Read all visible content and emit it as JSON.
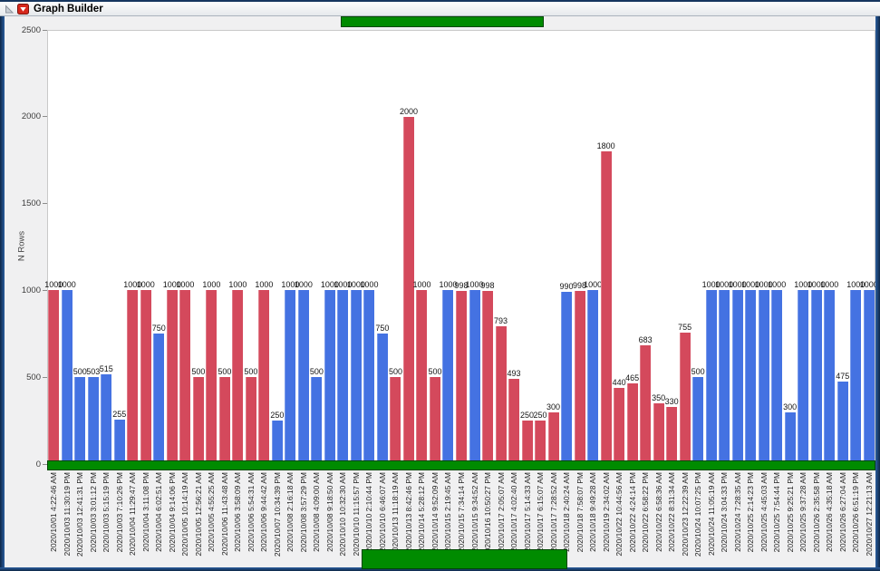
{
  "window": {
    "title": "Graph Builder"
  },
  "icons": {
    "disclosure": "disclosure-triangle-icon",
    "menu": "red-triangle-menu-icon"
  },
  "colors": {
    "red_bar": "#D4495C",
    "blue_bar": "#4472E2",
    "green_fill": "#008B00",
    "green_border": "#004600",
    "frame_blue": "#16365F"
  },
  "chart_data": {
    "type": "bar",
    "title": "",
    "xlabel": "",
    "ylabel": "N Rows",
    "ylim": [
      0,
      2500
    ],
    "yticks": [
      0,
      500,
      1000,
      1500,
      2000,
      2500
    ],
    "grid": false,
    "legend_position": "none",
    "bar_value_labels": true,
    "color_map": {
      "red": "#D4495C",
      "blue": "#4472E2"
    },
    "points": [
      {
        "t": "2020/10/01 4:22:46 AM",
        "v": 1000,
        "c": "red"
      },
      {
        "t": "2020/10/03 11:30:19 PM",
        "v": 1000,
        "c": "blue"
      },
      {
        "t": "2020/10/03 12:41:31 PM",
        "v": 500,
        "c": "blue"
      },
      {
        "t": "2020/10/03 3:01:12 PM",
        "v": 503,
        "c": "blue"
      },
      {
        "t": "2020/10/03 5:15:19 PM",
        "v": 515,
        "c": "blue"
      },
      {
        "t": "2020/10/03 7:10:26 PM",
        "v": 255,
        "c": "blue"
      },
      {
        "t": "2020/10/04 11:29:47 AM",
        "v": 1000,
        "c": "red"
      },
      {
        "t": "2020/10/04 3:11:08 PM",
        "v": 1000,
        "c": "red"
      },
      {
        "t": "2020/10/04 6:02:51 AM",
        "v": 750,
        "c": "blue"
      },
      {
        "t": "2020/10/04 9:14:06 PM",
        "v": 1000,
        "c": "red"
      },
      {
        "t": "2020/10/05 10:14:19 AM",
        "v": 1000,
        "c": "red"
      },
      {
        "t": "2020/10/05 12:56:21 AM",
        "v": 500,
        "c": "red"
      },
      {
        "t": "2020/10/05 4:55:25 AM",
        "v": 1000,
        "c": "red"
      },
      {
        "t": "2020/10/06 11:43:48 AM",
        "v": 500,
        "c": "red"
      },
      {
        "t": "2020/10/06 3:58:09 AM",
        "v": 1000,
        "c": "red"
      },
      {
        "t": "2020/10/06 5:54:31 AM",
        "v": 500,
        "c": "red"
      },
      {
        "t": "2020/10/06 9:44:42 AM",
        "v": 1000,
        "c": "red"
      },
      {
        "t": "2020/10/07 10:34:39 PM",
        "v": 250,
        "c": "blue"
      },
      {
        "t": "2020/10/08 2:16:18 AM",
        "v": 1000,
        "c": "blue"
      },
      {
        "t": "2020/10/08 3:57:29 PM",
        "v": 1000,
        "c": "blue"
      },
      {
        "t": "2020/10/08 4:09:00 AM",
        "v": 500,
        "c": "blue"
      },
      {
        "t": "2020/10/08 9:18:50 AM",
        "v": 1000,
        "c": "blue"
      },
      {
        "t": "2020/10/10 10:32:30 AM",
        "v": 1000,
        "c": "blue"
      },
      {
        "t": "2020/10/10 11:15:57 PM",
        "v": 1000,
        "c": "blue"
      },
      {
        "t": "2020/10/10 2:10:44 PM",
        "v": 1000,
        "c": "blue"
      },
      {
        "t": "2020/10/10 6:46:07 AM",
        "v": 750,
        "c": "blue"
      },
      {
        "t": "2020/10/13 11:18:19 AM",
        "v": 500,
        "c": "red"
      },
      {
        "t": "2020/10/13 8:42:46 PM",
        "v": 2000,
        "c": "red"
      },
      {
        "t": "2020/10/14 5:28:12 PM",
        "v": 1000,
        "c": "red"
      },
      {
        "t": "2020/10/14 9:52:09 AM",
        "v": 500,
        "c": "red"
      },
      {
        "t": "2020/10/15 2:19:45 AM",
        "v": 1000,
        "c": "blue"
      },
      {
        "t": "2020/10/15 7:34:14 PM",
        "v": 998,
        "c": "red"
      },
      {
        "t": "2020/10/15 9:34:52 AM",
        "v": 1000,
        "c": "blue"
      },
      {
        "t": "2020/10/16 10:50:27 PM",
        "v": 998,
        "c": "red"
      },
      {
        "t": "2020/10/17 2:05:07 AM",
        "v": 793,
        "c": "red"
      },
      {
        "t": "2020/10/17 4:02:40 AM",
        "v": 493,
        "c": "red"
      },
      {
        "t": "2020/10/17 5:14:33 AM",
        "v": 250,
        "c": "red"
      },
      {
        "t": "2020/10/17 6:15:07 AM",
        "v": 250,
        "c": "red"
      },
      {
        "t": "2020/10/17 7:28:52 AM",
        "v": 300,
        "c": "red"
      },
      {
        "t": "2020/10/18 2:40:24 AM",
        "v": 990,
        "c": "blue"
      },
      {
        "t": "2020/10/18 7:58:07 PM",
        "v": 998,
        "c": "red"
      },
      {
        "t": "2020/10/18 9:49:28 AM",
        "v": 1000,
        "c": "blue"
      },
      {
        "t": "2020/10/19 2:34:02 AM",
        "v": 1800,
        "c": "red"
      },
      {
        "t": "2020/10/22 10:44:56 AM",
        "v": 440,
        "c": "red"
      },
      {
        "t": "2020/10/22 4:24:14 PM",
        "v": 465,
        "c": "red"
      },
      {
        "t": "2020/10/22 6:58:22 PM",
        "v": 683,
        "c": "red"
      },
      {
        "t": "2020/10/22 6:58:36 AM",
        "v": 350,
        "c": "red"
      },
      {
        "t": "2020/10/22 8:31:34 AM",
        "v": 330,
        "c": "red"
      },
      {
        "t": "2020/10/23 12:22:39 AM",
        "v": 755,
        "c": "red"
      },
      {
        "t": "2020/10/24 10:07:25 PM",
        "v": 500,
        "c": "blue"
      },
      {
        "t": "2020/10/24 11:05:19 AM",
        "v": 1000,
        "c": "blue"
      },
      {
        "t": "2020/10/24 3:04:33 PM",
        "v": 1000,
        "c": "blue"
      },
      {
        "t": "2020/10/24 7:28:35 AM",
        "v": 1000,
        "c": "blue"
      },
      {
        "t": "2020/10/25 2:14:23 PM",
        "v": 1000,
        "c": "blue"
      },
      {
        "t": "2020/10/25 4:45:03 AM",
        "v": 1000,
        "c": "blue"
      },
      {
        "t": "2020/10/25 7:54:44 PM",
        "v": 1000,
        "c": "blue"
      },
      {
        "t": "2020/10/25 9:25:21 PM",
        "v": 300,
        "c": "blue"
      },
      {
        "t": "2020/10/25 9:37:28 AM",
        "v": 1000,
        "c": "blue"
      },
      {
        "t": "2020/10/26 2:35:58 PM",
        "v": 1000,
        "c": "blue"
      },
      {
        "t": "2020/10/26 4:35:18 AM",
        "v": 1000,
        "c": "blue"
      },
      {
        "t": "2020/10/26 6:27:04 AM",
        "v": 475,
        "c": "blue"
      },
      {
        "t": "2020/10/26 6:51:19 PM",
        "v": 1000,
        "c": "blue"
      },
      {
        "t": "2020/10/27 12:21:13 AM",
        "v": 1000,
        "c": "blue"
      }
    ]
  }
}
